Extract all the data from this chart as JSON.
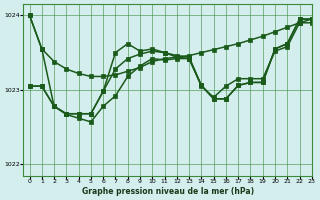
{
  "title": "Graphe pression niveau de la mer (hPa)",
  "background_color": "#d4eeee",
  "grid_color": "#3a8a3a",
  "line_color": "#1a5a1a",
  "xlim": [
    -0.5,
    23
  ],
  "ylim": [
    1021.85,
    1024.15
  ],
  "yticks": [
    1022,
    1023,
    1024
  ],
  "xticks": [
    0,
    1,
    2,
    3,
    4,
    5,
    6,
    7,
    8,
    9,
    10,
    11,
    12,
    13,
    14,
    15,
    16,
    17,
    18,
    19,
    20,
    21,
    22,
    23
  ],
  "line1": [
    1024.0,
    1023.55,
    1023.35,
    1023.28,
    1023.22,
    1023.18,
    1023.18,
    1023.2,
    1023.25,
    1023.3,
    1023.35,
    1023.38,
    1023.42,
    1023.46,
    1023.5,
    1023.54,
    1023.58,
    1023.62,
    1023.67,
    1023.72,
    1023.78,
    1023.84,
    1023.9,
    1023.95
  ],
  "line2": [
    1024.0,
    1023.55,
    1022.78,
    1022.68,
    1022.72,
    1022.72,
    1023.0,
    1023.52,
    1023.6,
    1023.5,
    1023.55,
    1023.45,
    1023.42,
    1023.42,
    1023.05,
    1022.88,
    1022.88,
    1023.05,
    1023.1,
    1023.1,
    1023.55,
    1023.6,
    1023.95,
    1023.95
  ],
  "line3": [
    1023.05,
    1023.05,
    1022.78,
    1022.68,
    1022.72,
    1022.72,
    1023.0,
    1023.28,
    1023.42,
    1023.48,
    1023.52,
    1023.5,
    1023.48,
    1023.45,
    1023.05,
    1022.88,
    1022.88,
    1023.05,
    1023.1,
    1023.1,
    1023.55,
    1023.6,
    1023.95,
    1023.95
  ],
  "line4": [
    1023.05,
    1023.05,
    1022.78,
    1022.67,
    1022.63,
    1022.57,
    1022.78,
    1022.92,
    1023.25,
    1023.38,
    1023.42,
    1023.38,
    1023.38,
    1023.38,
    1023.0,
    1022.87,
    1023.03,
    1023.18,
    1023.1,
    1023.1,
    1023.5,
    1023.55,
    1023.9,
    1023.9
  ]
}
